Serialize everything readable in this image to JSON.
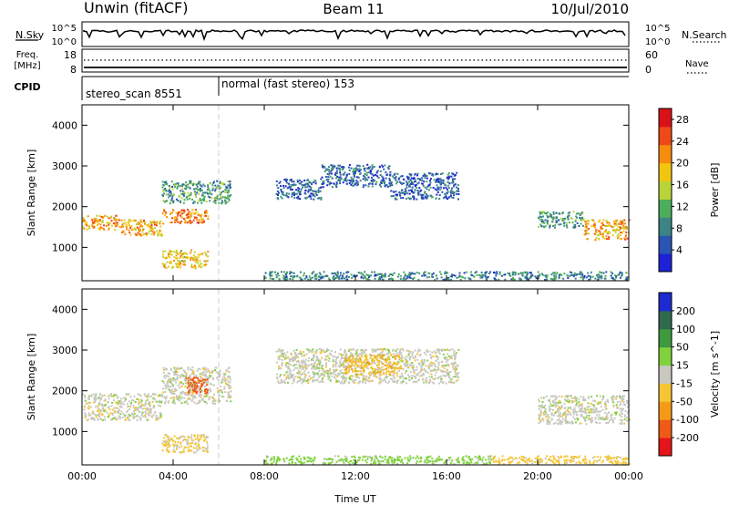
{
  "header": {
    "station": "Unwin (fitACF)",
    "beam": "Beam 11",
    "date": "10/Jul/2010"
  },
  "status_panels": {
    "nsky_label": "N.Sky",
    "nsearch_label": "N.Search",
    "noise_ticks": [
      "10^5",
      "10^0"
    ],
    "freq_label_top": "Freq.",
    "freq_label_bottom": "[MHz]",
    "freq_ticks": [
      18,
      8
    ],
    "nave_label": "Nave",
    "nave_ticks": [
      60,
      0
    ],
    "cpid_label": "CPID",
    "cpid_segments": [
      {
        "name": "stereo_scan",
        "id": 8551,
        "start_hour": 0,
        "end_hour": 6.0
      },
      {
        "name": "normal (fast stereo)",
        "id": 153,
        "start_hour": 6.0,
        "end_hour": 24
      }
    ]
  },
  "chart_data": [
    {
      "type": "heatmap",
      "title": "",
      "xlabel": "Time UT",
      "ylabel": "Slant Range [km]",
      "xlim": [
        0,
        24
      ],
      "ylim": [
        180,
        4500
      ],
      "x_ticks": [
        "00:00",
        "04:00",
        "08:00",
        "12:00",
        "16:00",
        "20:00",
        "00:00"
      ],
      "y_ticks": [
        1000,
        2000,
        3000,
        4000
      ],
      "colorbar": {
        "label": "Power [dB]",
        "ticks": [
          4,
          8,
          12,
          16,
          20,
          24,
          28
        ],
        "range": [
          0,
          30
        ],
        "colors": [
          "#1e22d6",
          "#2a55b4",
          "#3d8585",
          "#4cae5a",
          "#b9d43a",
          "#f2c511",
          "#f78c10",
          "#ee4a18",
          "#d9121a"
        ]
      },
      "bands": [
        {
          "t0": 0.0,
          "t1": 1.5,
          "r0": 1450,
          "r1": 1800,
          "value": 20
        },
        {
          "t0": 1.5,
          "t1": 3.5,
          "r0": 1300,
          "r1": 1700,
          "value": 20
        },
        {
          "t0": 3.5,
          "t1": 5.5,
          "r0": 1600,
          "r1": 1950,
          "value": 22
        },
        {
          "t0": 3.5,
          "t1": 6.5,
          "r0": 2100,
          "r1": 2650,
          "value": 10
        },
        {
          "t0": 3.5,
          "t1": 5.5,
          "r0": 500,
          "r1": 950,
          "value": 18
        },
        {
          "t0": 8.5,
          "t1": 10.5,
          "r0": 2200,
          "r1": 2700,
          "value": 6
        },
        {
          "t0": 10.5,
          "t1": 13.5,
          "r0": 2500,
          "r1": 3050,
          "value": 6
        },
        {
          "t0": 13.5,
          "t1": 16.5,
          "r0": 2200,
          "r1": 2850,
          "value": 6
        },
        {
          "t0": 20.0,
          "t1": 22.0,
          "r0": 1500,
          "r1": 1900,
          "value": 10
        },
        {
          "t0": 22.0,
          "t1": 24.0,
          "r0": 1200,
          "r1": 1700,
          "value": 20
        },
        {
          "t0": 8.0,
          "t1": 24.0,
          "r0": 220,
          "r1": 420,
          "value": 8
        }
      ]
    },
    {
      "type": "heatmap",
      "title": "",
      "xlabel": "Time UT",
      "ylabel": "Slant Range [km]",
      "xlim": [
        0,
        24
      ],
      "ylim": [
        180,
        4500
      ],
      "x_ticks": [
        "00:00",
        "04:00",
        "08:00",
        "12:00",
        "16:00",
        "20:00",
        "00:00"
      ],
      "y_ticks": [
        1000,
        2000,
        3000,
        4000
      ],
      "colorbar": {
        "label": "Velocity [m s^-1]",
        "ticks": [
          200,
          100,
          50,
          15,
          -15,
          -50,
          -100,
          -200
        ],
        "colors": [
          "#1e2ad0",
          "#2f6a4d",
          "#3e9a3f",
          "#7fd23c",
          "#c8c8c0",
          "#f5c535",
          "#f59a18",
          "#ef5a17",
          "#e5141a"
        ]
      },
      "bands": [
        {
          "t0": 0.0,
          "t1": 3.5,
          "r0": 1300,
          "r1": 1950,
          "value": 0
        },
        {
          "t0": 3.5,
          "t1": 6.5,
          "r0": 1700,
          "r1": 2600,
          "value": 0
        },
        {
          "t0": 4.5,
          "t1": 5.5,
          "r0": 1950,
          "r1": 2350,
          "value": -180
        },
        {
          "t0": 3.5,
          "t1": 5.5,
          "r0": 500,
          "r1": 950,
          "value": -20
        },
        {
          "t0": 8.5,
          "t1": 16.5,
          "r0": 2200,
          "r1": 3050,
          "value": 0
        },
        {
          "t0": 11.5,
          "t1": 14.0,
          "r0": 2400,
          "r1": 2900,
          "value": -40
        },
        {
          "t0": 20.0,
          "t1": 24.0,
          "r0": 1200,
          "r1": 1900,
          "value": 0
        },
        {
          "t0": 18.0,
          "t1": 24.0,
          "r0": 220,
          "r1": 420,
          "value": -30
        },
        {
          "t0": 8.0,
          "t1": 18.0,
          "r0": 220,
          "r1": 420,
          "value": 30
        }
      ]
    }
  ],
  "colors": {
    "frame": "#000000",
    "background": "#ffffff",
    "divider": "#cccccc"
  }
}
